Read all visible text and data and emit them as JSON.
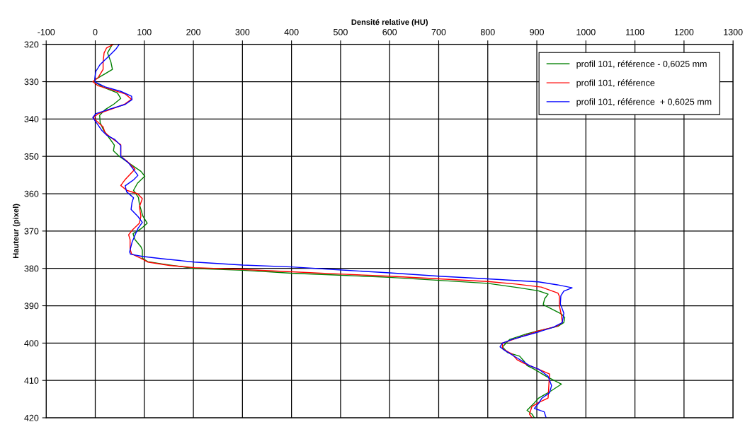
{
  "chart_data": {
    "type": "line",
    "xlabel": "Densité relative (HU)",
    "ylabel": "Hauteur (pixel)",
    "xlim": [
      -100,
      1300
    ],
    "xticks": [
      -100,
      0,
      100,
      200,
      300,
      400,
      500,
      600,
      700,
      800,
      900,
      1000,
      1100,
      1200,
      1300
    ],
    "ylim": [
      420,
      320
    ],
    "yticks": [
      320,
      330,
      340,
      350,
      360,
      370,
      380,
      390,
      400,
      410,
      420
    ],
    "grid": true,
    "legend": "top right",
    "marker": "none",
    "line_style": "solid",
    "series": [
      {
        "name": "profil 101, référence - 0,6025 mm",
        "color": "#008000",
        "x": [
          35,
          25,
          32,
          35,
          20,
          -1,
          -2,
          16,
          45,
          52,
          38,
          20,
          9,
          10,
          17,
          28,
          39,
          37,
          49,
          71,
          93,
          101,
          86,
          78,
          88,
          90,
          97,
          106,
          93,
          77,
          81,
          93,
          96,
          96,
          107,
          141,
          202,
          301,
          400,
          497,
          600,
          701,
          800,
          864,
          903,
          923,
          916,
          913,
          926,
          950,
          957,
          955,
          943,
          904,
          880,
          845,
          830,
          840,
          865,
          875,
          880,
          895,
          919,
          950,
          929,
          904,
          895,
          880,
          890,
          895
        ],
        "values": [
          320,
          322.3,
          324.8,
          326.7,
          327.9,
          329.5,
          330,
          331.5,
          333,
          334.5,
          336,
          337.5,
          339,
          341,
          343,
          345,
          347,
          348.5,
          350,
          352,
          354,
          355.3,
          357.2,
          359.1,
          361,
          362.8,
          366,
          367.9,
          369.4,
          370.7,
          372.3,
          374.2,
          375.1,
          377.3,
          378.2,
          378.9,
          380,
          380.5,
          381.3,
          381.8,
          382.4,
          383.2,
          384,
          385.2,
          386,
          386.9,
          388.1,
          389.7,
          390.6,
          392.2,
          393.2,
          394.5,
          395.5,
          396.7,
          397.5,
          399,
          401,
          402.5,
          403.5,
          405,
          406,
          407,
          408.9,
          411,
          412.8,
          414.7,
          416,
          418,
          419,
          420
        ]
      },
      {
        "name": "profil 101, référence",
        "color": "#ff0000",
        "x": [
          37,
          23,
          18,
          16,
          16,
          6,
          -5,
          6,
          30,
          61,
          74,
          59,
          32,
          6,
          -4,
          0,
          16,
          20,
          32,
          52,
          52,
          64,
          81,
          61,
          52,
          64,
          86,
          96,
          90,
          93,
          90,
          75,
          68,
          71,
          71,
          74,
          93,
          107,
          151,
          202,
          301,
          400,
          497,
          600,
          701,
          800,
          858,
          909,
          943,
          946,
          946,
          950,
          952,
          941,
          904,
          830,
          830,
          850,
          860,
          875,
          900,
          926,
          925,
          923,
          904,
          890,
          885,
          890
        ],
        "values": [
          320,
          321,
          322.3,
          324.8,
          326.7,
          328.9,
          330,
          331.1,
          332,
          333.3,
          334.7,
          336.1,
          337.4,
          338.6,
          339.6,
          340.2,
          342.1,
          343.7,
          345,
          346.9,
          350,
          351.2,
          353.4,
          356.2,
          357.8,
          359.1,
          360,
          361.3,
          363.5,
          366,
          367.9,
          369.8,
          371,
          372.3,
          374.8,
          376.1,
          377.3,
          378.3,
          379.2,
          379.8,
          380.3,
          380.9,
          381.5,
          382.1,
          382.8,
          383.5,
          384.2,
          385,
          386.6,
          387.5,
          390,
          392.5,
          394.5,
          395.5,
          396.7,
          400,
          401.5,
          403,
          404.5,
          405.5,
          406.8,
          408.3,
          410.2,
          414.7,
          415.9,
          417,
          419,
          420
        ]
      },
      {
        "name": "profil 101, référence  + 0,6025 mm",
        "color": "#0000ff",
        "x": [
          49,
          42,
          25,
          10,
          1,
          -1,
          0,
          20,
          52,
          74,
          75,
          61,
          28,
          1,
          -5,
          3,
          13,
          23,
          40,
          52,
          52,
          68,
          87,
          78,
          61,
          64,
          78,
          75,
          73,
          87,
          96,
          87,
          81,
          75,
          70,
          72,
          96,
          136,
          202,
          301,
          400,
          497,
          600,
          701,
          800,
          903,
          942,
          972,
          955,
          949,
          948,
          955,
          952,
          933,
          904,
          850,
          830,
          825,
          835,
          860,
          885,
          904,
          923,
          930,
          926,
          910,
          904,
          895,
          915,
          919
        ],
        "values": [
          320,
          321.3,
          323.5,
          325.4,
          327.3,
          329.2,
          330.1,
          331.4,
          332.6,
          333.9,
          334.8,
          336.1,
          337.4,
          338.6,
          339.6,
          341.1,
          343,
          344.3,
          345.5,
          347.1,
          350,
          351.8,
          355.1,
          356.3,
          357.9,
          359.5,
          361.1,
          362.3,
          364.2,
          366.1,
          367.7,
          369.3,
          371.1,
          373,
          375.6,
          376.2,
          376.8,
          377.4,
          378.3,
          379.1,
          379.6,
          380.4,
          381.2,
          382.1,
          382.8,
          383.6,
          384.4,
          385.2,
          386.1,
          387.3,
          389.5,
          392,
          394.5,
          395.8,
          397,
          399,
          400,
          401,
          402,
          404,
          406,
          407,
          408.9,
          411.4,
          413.3,
          414.8,
          416.1,
          417.5,
          418.4,
          420
        ]
      }
    ]
  }
}
